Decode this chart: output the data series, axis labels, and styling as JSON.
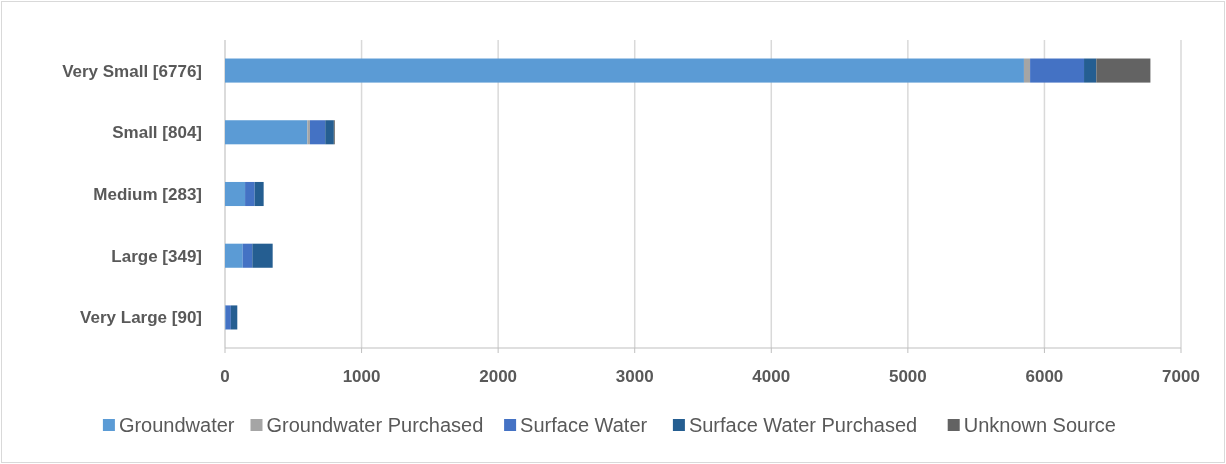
{
  "chart_data": {
    "type": "bar",
    "orientation": "horizontal",
    "stacked": true,
    "categories": [
      "Very Small [6776]",
      "Small [804]",
      "Medium [283]",
      "Large [349]",
      "Very Large [90]"
    ],
    "series": [
      {
        "name": "Groundwater",
        "color": "#5b9bd5",
        "values": [
          5850,
          603,
          147,
          130,
          5
        ]
      },
      {
        "name": "Groundwater Purchased",
        "color": "#a5a5a5",
        "values": [
          45,
          19,
          0,
          0,
          0
        ]
      },
      {
        "name": "Surface Water",
        "color": "#4472c4",
        "values": [
          395,
          112,
          70,
          70,
          38
        ]
      },
      {
        "name": "Surface Water Purchased",
        "color": "#255e91",
        "values": [
          90,
          63,
          66,
          149,
          47
        ]
      },
      {
        "name": "Unknown Source",
        "color": "#636363",
        "values": [
          396,
          7,
          0,
          0,
          0
        ]
      }
    ],
    "xlim": [
      0,
      7000
    ],
    "xticks": [
      0,
      1000,
      2000,
      3000,
      4000,
      5000,
      6000,
      7000
    ],
    "grid": "x",
    "legend": "bottom"
  }
}
